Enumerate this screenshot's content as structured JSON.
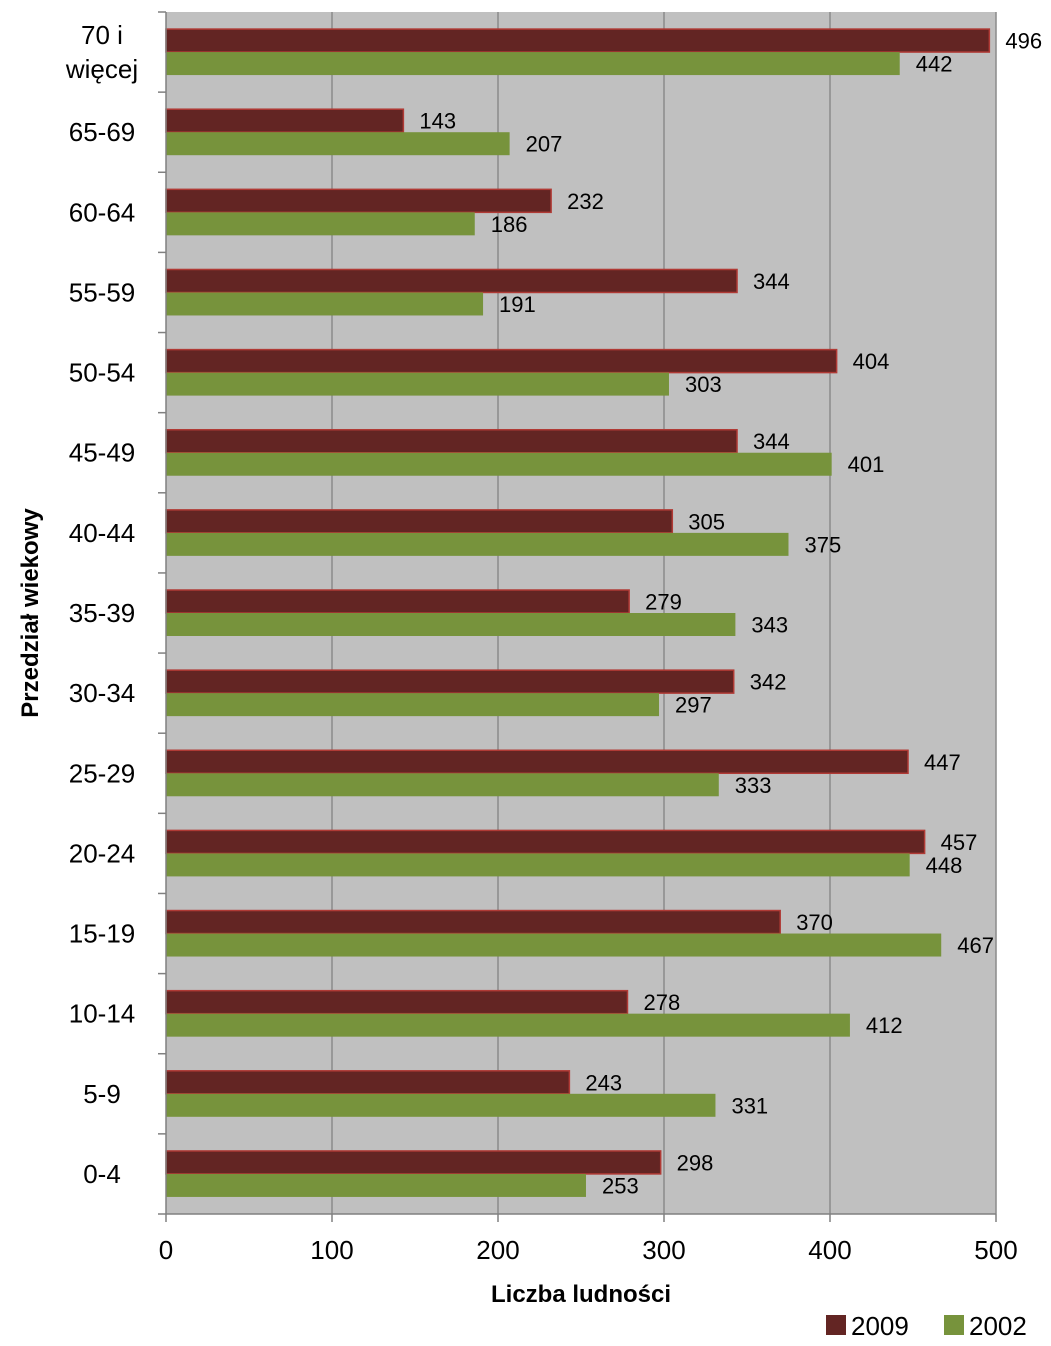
{
  "chart_data": {
    "type": "bar",
    "orientation": "horizontal",
    "categories": [
      "70 i więcej",
      "65-69",
      "60-64",
      "55-59",
      "50-54",
      "45-49",
      "40-44",
      "35-39",
      "30-34",
      "25-29",
      "20-24",
      "15-19",
      "10-14",
      "5-9",
      "0-4"
    ],
    "series": [
      {
        "name": "2009",
        "color": "#632523",
        "values": [
          496,
          143,
          232,
          344,
          404,
          344,
          305,
          279,
          342,
          447,
          457,
          370,
          278,
          243,
          298
        ]
      },
      {
        "name": "2002",
        "color": "#77933C",
        "values": [
          442,
          207,
          186,
          191,
          303,
          401,
          375,
          343,
          297,
          333,
          448,
          467,
          412,
          331,
          253
        ]
      }
    ],
    "xlabel": "Liczba ludności",
    "ylabel": "Przedział wiekowy",
    "xlim": [
      0,
      500
    ],
    "xticks": [
      0,
      100,
      200,
      300,
      400,
      500
    ],
    "grid": true,
    "plot_background": "#C0C0C0",
    "legend_position": "bottom-right"
  }
}
